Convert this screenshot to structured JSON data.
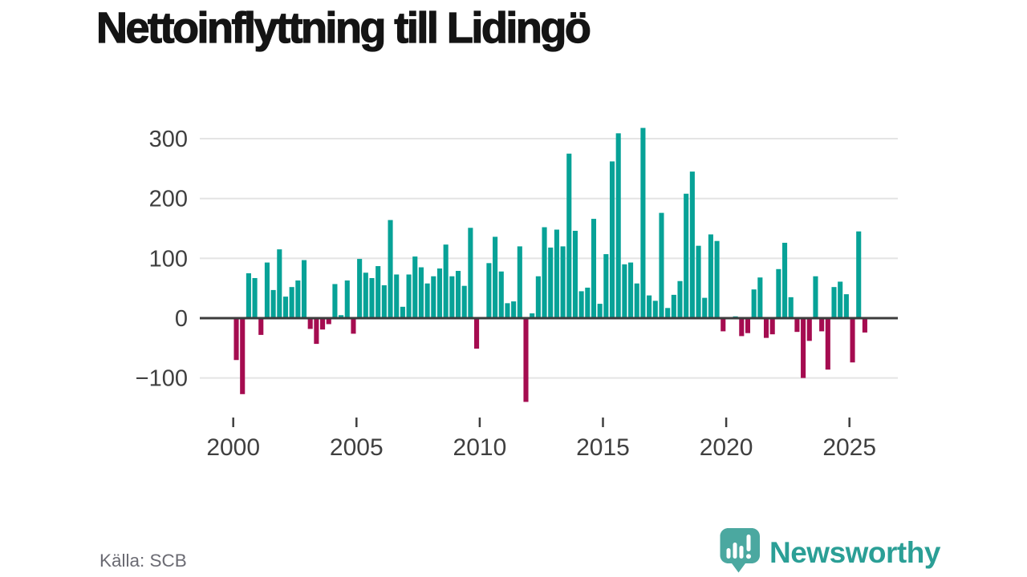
{
  "title": "Nettoinflyttning till Lidingö",
  "source_label": "Källa: SCB",
  "brand": {
    "name": "Newsworthy"
  },
  "colors": {
    "background": "#ffffff",
    "positive": "#07a297",
    "negative": "#a50c50",
    "grid": "#e4e4e4",
    "zero_line": "#3c3c3c",
    "axis_text": "#3f3f3f",
    "title_text": "#141414",
    "source_text": "#6b6b73",
    "brand_icon": "#4ba8a0",
    "brand_text": "#2b9f96"
  },
  "chart_data": {
    "type": "bar",
    "title": "Nettoinflyttning till Lidingö",
    "grid": true,
    "legend": false,
    "start_quarter": "2000Q1",
    "end_quarter": "2025Q3",
    "x_axis": {
      "tick_years": [
        2000,
        2005,
        2010,
        2015,
        2020,
        2025
      ],
      "tick_labels": [
        "2000",
        "2005",
        "2010",
        "2015",
        "2020",
        "2025"
      ]
    },
    "y_axis": {
      "ticks": [
        300,
        200,
        100,
        0,
        -100
      ],
      "tick_labels": [
        "300",
        "200",
        "100",
        "0",
        "−100"
      ],
      "ylim": [
        -150,
        330
      ]
    },
    "values_by_year": [
      {
        "year": 2000,
        "quarters": [
          -70,
          -127,
          75,
          67
        ]
      },
      {
        "year": 2001,
        "quarters": [
          -28,
          93,
          47,
          115
        ]
      },
      {
        "year": 2002,
        "quarters": [
          36,
          52,
          63,
          97
        ]
      },
      {
        "year": 2003,
        "quarters": [
          -18,
          -43,
          -19,
          -10
        ]
      },
      {
        "year": 2004,
        "quarters": [
          57,
          5,
          63,
          -26
        ]
      },
      {
        "year": 2005,
        "quarters": [
          99,
          76,
          67,
          87
        ]
      },
      {
        "year": 2006,
        "quarters": [
          55,
          164,
          73,
          19
        ]
      },
      {
        "year": 2007,
        "quarters": [
          73,
          103,
          85,
          58
        ]
      },
      {
        "year": 2008,
        "quarters": [
          70,
          83,
          123,
          70
        ]
      },
      {
        "year": 2009,
        "quarters": [
          79,
          54,
          151,
          -51
        ]
      },
      {
        "year": 2010,
        "quarters": [
          0,
          92,
          136,
          78
        ]
      },
      {
        "year": 2011,
        "quarters": [
          25,
          28,
          120,
          -140
        ]
      },
      {
        "year": 2012,
        "quarters": [
          8,
          70,
          152,
          118
        ]
      },
      {
        "year": 2013,
        "quarters": [
          148,
          120,
          275,
          146
        ]
      },
      {
        "year": 2014,
        "quarters": [
          45,
          51,
          166,
          24
        ]
      },
      {
        "year": 2015,
        "quarters": [
          107,
          262,
          309,
          90
        ]
      },
      {
        "year": 2016,
        "quarters": [
          93,
          58,
          318,
          38
        ]
      },
      {
        "year": 2017,
        "quarters": [
          29,
          176,
          17,
          39
        ]
      },
      {
        "year": 2018,
        "quarters": [
          62,
          208,
          245,
          121
        ]
      },
      {
        "year": 2019,
        "quarters": [
          34,
          140,
          129,
          -22
        ]
      },
      {
        "year": 2020,
        "quarters": [
          0,
          3,
          -30,
          -25
        ]
      },
      {
        "year": 2021,
        "quarters": [
          48,
          68,
          -33,
          -27
        ]
      },
      {
        "year": 2022,
        "quarters": [
          82,
          126,
          35,
          -23
        ]
      },
      {
        "year": 2023,
        "quarters": [
          -100,
          -38,
          70,
          -22
        ]
      },
      {
        "year": 2024,
        "quarters": [
          -86,
          52,
          61,
          40
        ]
      },
      {
        "year": 2025,
        "quarters": [
          -74,
          145,
          -24
        ]
      }
    ]
  }
}
